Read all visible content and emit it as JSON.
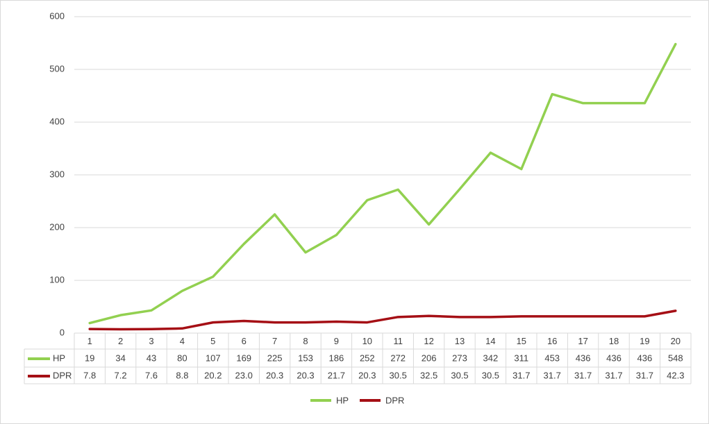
{
  "chart_data": {
    "type": "line",
    "categories": [
      "1",
      "2",
      "3",
      "4",
      "5",
      "6",
      "7",
      "8",
      "9",
      "10",
      "11",
      "12",
      "13",
      "14",
      "15",
      "16",
      "17",
      "18",
      "19",
      "20"
    ],
    "series": [
      {
        "name": "HP",
        "color": "#92d050",
        "values": [
          19,
          34,
          43,
          80,
          107,
          169,
          225,
          153,
          186,
          252,
          272,
          206,
          273,
          342,
          311,
          453,
          436,
          436,
          436,
          548
        ]
      },
      {
        "name": "DPR",
        "color": "#a50f15",
        "values": [
          7.8,
          7.2,
          7.6,
          8.8,
          20.2,
          23,
          20.3,
          20.3,
          21.7,
          20.3,
          30.5,
          32.5,
          30.5,
          30.5,
          31.7,
          31.7,
          31.7,
          31.7,
          31.7,
          42.3
        ],
        "value_labels": [
          "7.8",
          "7.2",
          "7.6",
          "8.8",
          "20.2",
          "23.0",
          "20.3",
          "20.3",
          "21.7",
          "20.3",
          "30.5",
          "32.5",
          "30.5",
          "30.5",
          "31.7",
          "31.7",
          "31.7",
          "31.7",
          "31.7",
          "42.3"
        ]
      }
    ],
    "ylim": [
      0,
      600
    ],
    "yticks": [
      0,
      100,
      200,
      300,
      400,
      500,
      600
    ],
    "grid": true,
    "legend": "bottom"
  }
}
